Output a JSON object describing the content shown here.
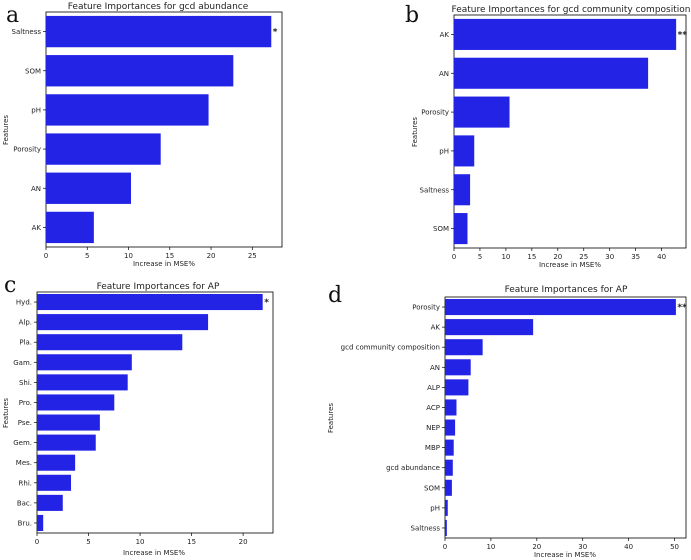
{
  "bar_color": "#2323e6",
  "chart_data": [
    {
      "type": "bar",
      "orientation": "horizontal",
      "panel": "a",
      "title": "Feature Importances for gcd abundance",
      "xlabel": "Increase in MSE%",
      "ylabel": "Features",
      "categories": [
        "Saltness",
        "SOM",
        "pH",
        "Porosity",
        "AN",
        "AK"
      ],
      "values": [
        27.3,
        22.7,
        19.7,
        13.9,
        10.3,
        5.8
      ],
      "significance": [
        "*",
        "",
        "",
        "",
        "",
        ""
      ],
      "xlim": [
        0,
        28.6
      ],
      "xticks": [
        0,
        5,
        10,
        15,
        20,
        25
      ]
    },
    {
      "type": "bar",
      "orientation": "horizontal",
      "panel": "b",
      "title": "Feature Importances for gcd community composition",
      "xlabel": "Increase in MSE%",
      "ylabel": "Features",
      "categories": [
        "AK",
        "AN",
        "Porosity",
        "pH",
        "Saltness",
        "SOM"
      ],
      "values": [
        42.8,
        37.4,
        10.7,
        3.9,
        3.1,
        2.6
      ],
      "significance": [
        "**",
        "",
        "",
        "",
        "",
        ""
      ],
      "xlim": [
        0,
        44.7
      ],
      "xticks": [
        0,
        5,
        10,
        15,
        20,
        25,
        30,
        35,
        40
      ]
    },
    {
      "type": "bar",
      "orientation": "horizontal",
      "panel": "c",
      "title": "Feature Importances for AP",
      "xlabel": "Increase in MSE%",
      "ylabel": "Features",
      "categories": [
        "Hyd.",
        "Alp.",
        "Pla.",
        "Gam.",
        "Shi.",
        "Pro.",
        "Pse.",
        "Gem.",
        "Mes.",
        "Rhi.",
        "Bac.",
        "Bru."
      ],
      "values": [
        21.9,
        16.6,
        14.1,
        9.2,
        8.8,
        7.5,
        6.1,
        5.7,
        3.7,
        3.3,
        2.5,
        0.6
      ],
      "significance": [
        "*",
        "",
        "",
        "",
        "",
        "",
        "",
        "",
        "",
        "",
        "",
        ""
      ],
      "xlim": [
        0,
        22.9
      ],
      "xticks": [
        0,
        5,
        10,
        15,
        20
      ]
    },
    {
      "type": "bar",
      "orientation": "horizontal",
      "panel": "d",
      "title": "Feature Importances for AP",
      "xlabel": "Increase in MSE%",
      "ylabel": "Features",
      "categories": [
        "Porosity",
        "AK",
        "gcd community composition",
        "AN",
        "ALP",
        "ACP",
        "NEP",
        "MBP",
        "gcd abundance",
        "SOM",
        "pH",
        "Saltness"
      ],
      "values": [
        50.3,
        19.2,
        8.2,
        5.6,
        5.1,
        2.5,
        2.2,
        1.9,
        1.7,
        1.5,
        0.6,
        0.4
      ],
      "significance": [
        "**",
        "",
        "",
        "",
        "",
        "",
        "",
        "",
        "",
        "",
        "",
        ""
      ],
      "xlim": [
        0,
        52.5
      ],
      "xticks": [
        0,
        10,
        20,
        30,
        40,
        50
      ]
    }
  ]
}
